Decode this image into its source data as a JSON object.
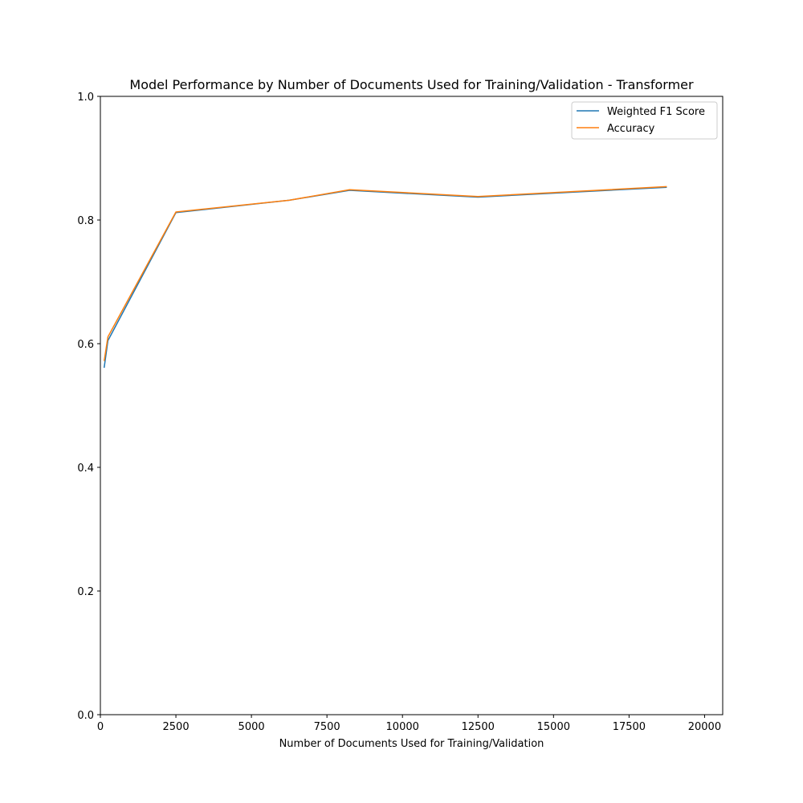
{
  "chart_data": {
    "type": "line",
    "title": "Model Performance by Number of Documents Used for Training/Validation - Transformer",
    "xlabel": "Number of Documents Used for Training/Validation",
    "ylabel": "",
    "xlim": [
      0,
      20600
    ],
    "ylim": [
      0.0,
      1.0
    ],
    "xticks": [
      0,
      2500,
      5000,
      7500,
      10000,
      12500,
      15000,
      17500,
      20000
    ],
    "yticks": [
      0.0,
      0.2,
      0.4,
      0.6,
      0.8,
      1.0
    ],
    "ytick_labels": [
      "0.0",
      "0.2",
      "0.4",
      "0.6",
      "0.8",
      "1.0"
    ],
    "grid": false,
    "legend_position": "top-right",
    "series": [
      {
        "name": "Weighted F1 Score",
        "color": "#1f77b4",
        "x": [
          125,
          250,
          2500,
          6250,
          8250,
          12500,
          18750
        ],
        "y": [
          0.561,
          0.605,
          0.812,
          0.832,
          0.848,
          0.837,
          0.853
        ]
      },
      {
        "name": "Accuracy",
        "color": "#ff7f0e",
        "x": [
          125,
          250,
          2500,
          6250,
          8250,
          12500,
          18750
        ],
        "y": [
          0.572,
          0.611,
          0.813,
          0.832,
          0.849,
          0.838,
          0.854
        ]
      }
    ]
  }
}
